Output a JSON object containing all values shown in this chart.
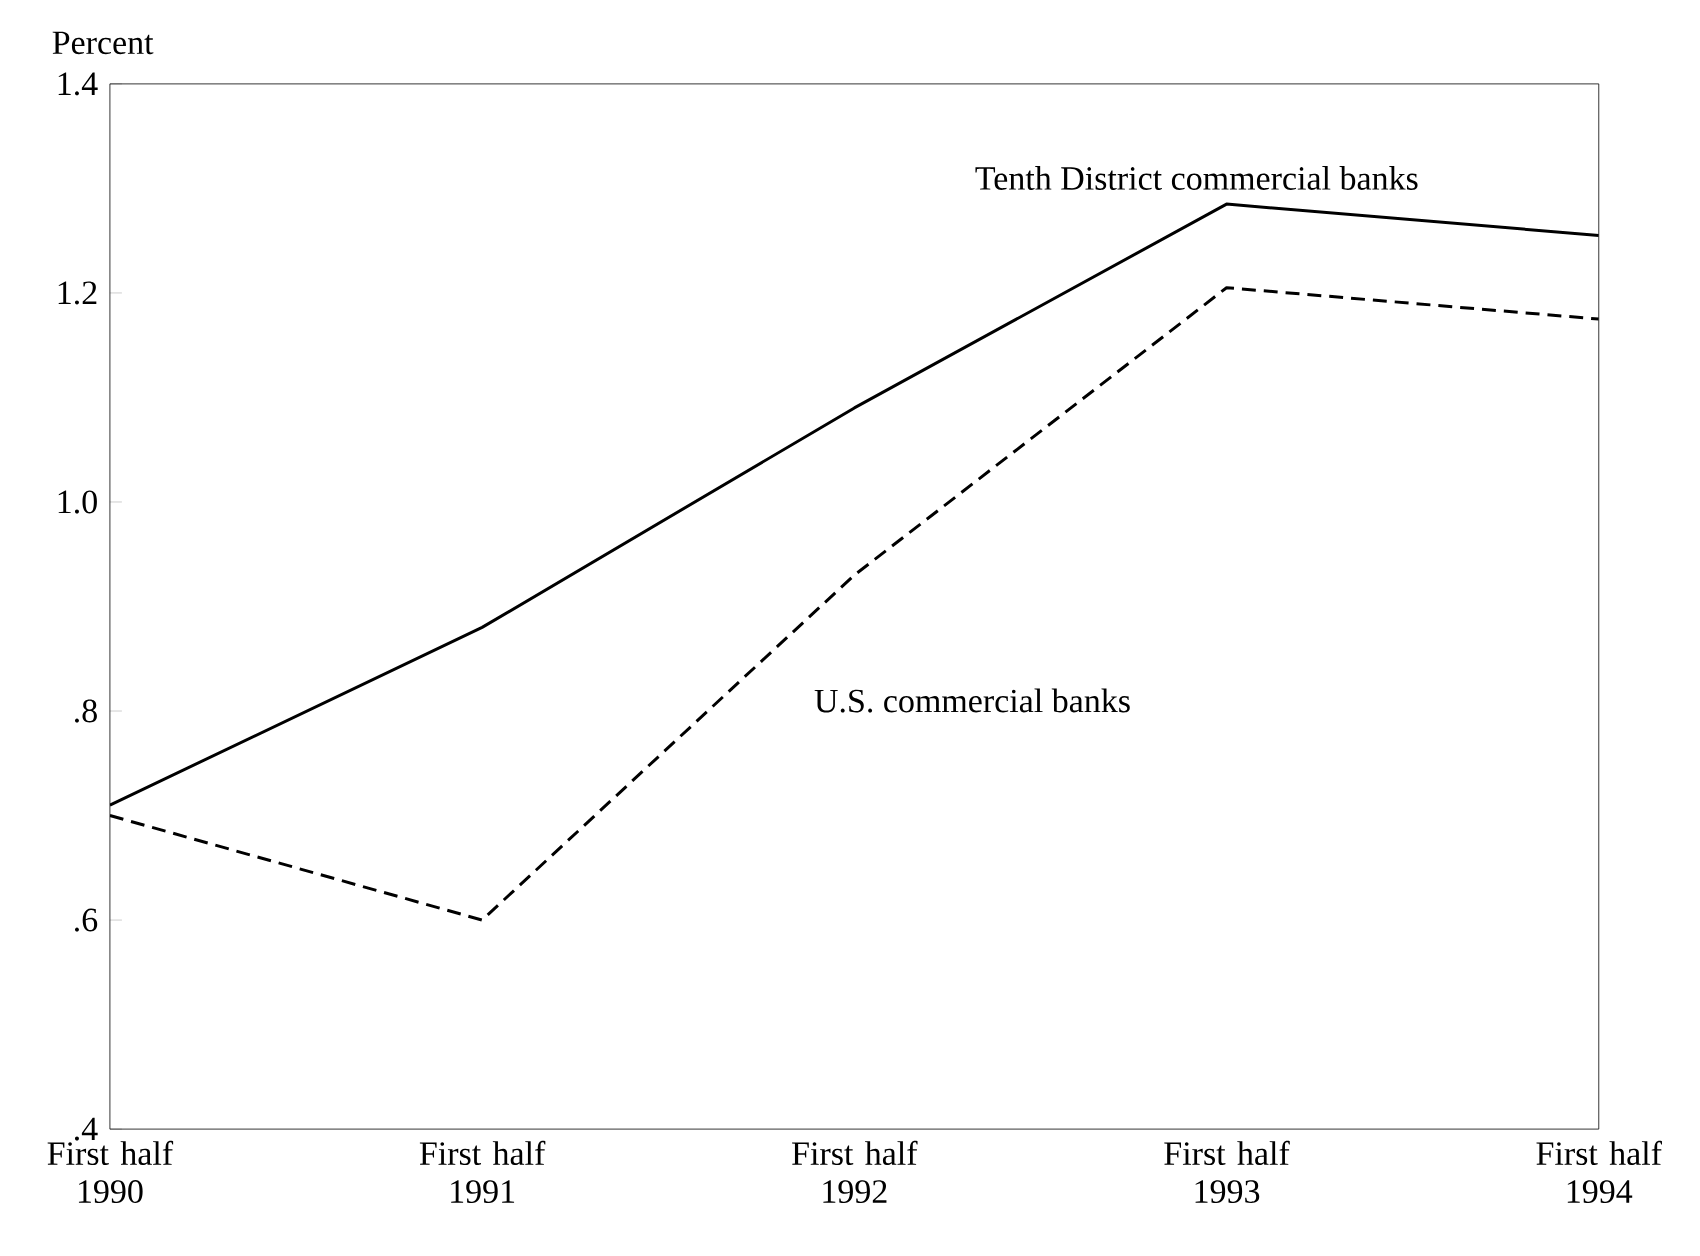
{
  "chart_data": {
    "type": "line",
    "ylabel": "Percent",
    "categories": [
      "First half 1990",
      "First half 1991",
      "First half 1992",
      "First half 1993",
      "First half 1994"
    ],
    "series": [
      {
        "name": "Tenth District commercial banks",
        "color": "#000000",
        "line_style": "solid",
        "values": [
          0.71,
          0.88,
          1.09,
          1.285,
          1.255
        ]
      },
      {
        "name": "U.S. commercial banks",
        "color": "#000000",
        "line_style": "dashed",
        "values": [
          0.7,
          0.6,
          0.93,
          1.205,
          1.175
        ]
      }
    ],
    "ylim": [
      0.4,
      1.4
    ],
    "yticks": [
      {
        "value": 0.4,
        "label": ".4"
      },
      {
        "value": 0.6,
        "label": ".6"
      },
      {
        "value": 0.8,
        "label": ".8"
      },
      {
        "value": 1.0,
        "label": "1.0"
      },
      {
        "value": 1.2,
        "label": "1.2"
      },
      {
        "value": 1.4,
        "label": "1.4"
      }
    ],
    "grid": false,
    "legend": false,
    "marker": "none"
  }
}
